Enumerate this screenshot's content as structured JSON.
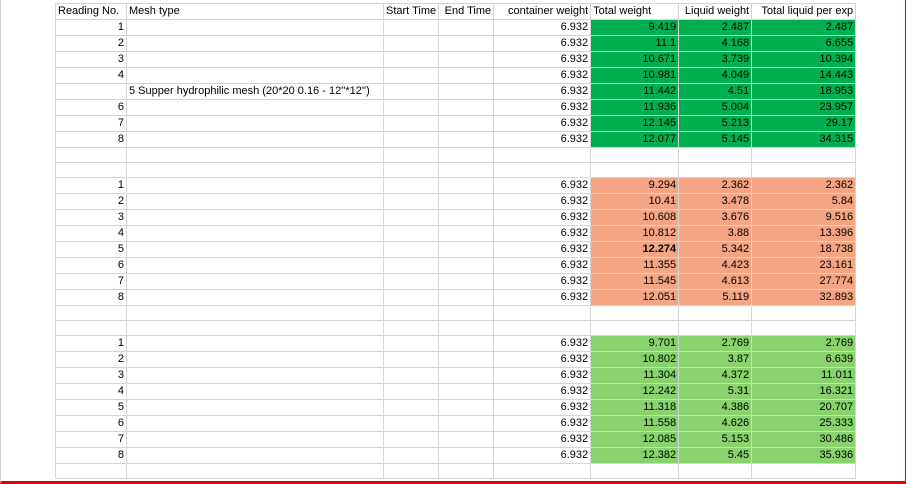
{
  "headers": {
    "reading_no": "Reading No.",
    "mesh_type": "Mesh type",
    "start_time": "Start Time",
    "end_time": "End Time",
    "container_weight": "container weight",
    "total_weight": "Total weight",
    "liquid_weight": "Liquid weight",
    "total_liquid": "Total liquid per exp"
  },
  "mesh_label": "5 Supper hydrophilic mesh (20*20 0.16 - 12''*12'')",
  "fill_colors": {
    "group1": "#00b050",
    "group2": "#f4a684",
    "group3": "#88d36e"
  },
  "groups": [
    {
      "rows": [
        {
          "reading": "1",
          "container": "6.932",
          "total": "9.419",
          "liquid": "2.487",
          "cum": "2.487"
        },
        {
          "reading": "2",
          "container": "6.932",
          "total": "11.1",
          "liquid": "4.168",
          "cum": "6.655"
        },
        {
          "reading": "3",
          "container": "6.932",
          "total": "10.671",
          "liquid": "3.739",
          "cum": "10.394"
        },
        {
          "reading": "4",
          "container": "6.932",
          "total": "10.981",
          "liquid": "4.049",
          "cum": "14.443"
        },
        {
          "reading": "",
          "container": "6.932",
          "total": "11.442",
          "liquid": "4.51",
          "cum": "18.953"
        },
        {
          "reading": "6",
          "container": "6.932",
          "total": "11.936",
          "liquid": "5.004",
          "cum": "23.957"
        },
        {
          "reading": "7",
          "container": "6.932",
          "total": "12.145",
          "liquid": "5.213",
          "cum": "29.17"
        },
        {
          "reading": "8",
          "container": "6.932",
          "total": "12.077",
          "liquid": "5.145",
          "cum": "34.315"
        }
      ]
    },
    {
      "rows": [
        {
          "reading": "1",
          "container": "6.932",
          "total": "9.294",
          "liquid": "2.362",
          "cum": "2.362"
        },
        {
          "reading": "2",
          "container": "6.932",
          "total": "10.41",
          "liquid": "3.478",
          "cum": "5.84"
        },
        {
          "reading": "3",
          "container": "6.932",
          "total": "10.608",
          "liquid": "3.676",
          "cum": "9.516"
        },
        {
          "reading": "4",
          "container": "6.932",
          "total": "10.812",
          "liquid": "3.88",
          "cum": "13.396"
        },
        {
          "reading": "5",
          "container": "6.932",
          "total": "12.274",
          "liquid": "5.342",
          "cum": "18.738"
        },
        {
          "reading": "6",
          "container": "6.932",
          "total": "11.355",
          "liquid": "4.423",
          "cum": "23.161"
        },
        {
          "reading": "7",
          "container": "6.932",
          "total": "11.545",
          "liquid": "4.613",
          "cum": "27.774"
        },
        {
          "reading": "8",
          "container": "6.932",
          "total": "12.051",
          "liquid": "5.119",
          "cum": "32.893"
        }
      ]
    },
    {
      "rows": [
        {
          "reading": "1",
          "container": "6.932",
          "total": "9.701",
          "liquid": "2.769",
          "cum": "2.769"
        },
        {
          "reading": "2",
          "container": "6.932",
          "total": "10.802",
          "liquid": "3.87",
          "cum": "6.639"
        },
        {
          "reading": "3",
          "container": "6.932",
          "total": "11.304",
          "liquid": "4.372",
          "cum": "11.011"
        },
        {
          "reading": "4",
          "container": "6.932",
          "total": "12.242",
          "liquid": "5.31",
          "cum": "16.321"
        },
        {
          "reading": "5",
          "container": "6.932",
          "total": "11.318",
          "liquid": "4.386",
          "cum": "20.707"
        },
        {
          "reading": "6",
          "container": "6.932",
          "total": "11.558",
          "liquid": "4.626",
          "cum": "25.333"
        },
        {
          "reading": "7",
          "container": "6.932",
          "total": "12.085",
          "liquid": "5.153",
          "cum": "30.486"
        },
        {
          "reading": "8",
          "container": "6.932",
          "total": "12.382",
          "liquid": "5.45",
          "cum": "35.936"
        }
      ]
    }
  ]
}
